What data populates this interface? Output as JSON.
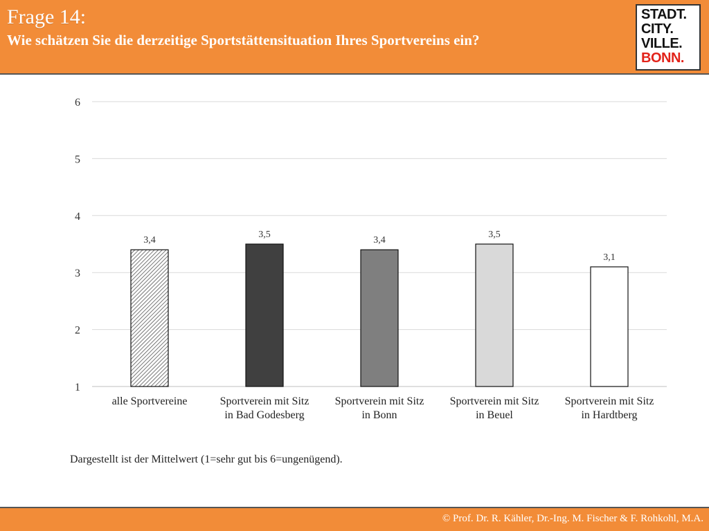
{
  "header": {
    "title": "Frage 14:",
    "subtitle": "Wie schätzen Sie die derzeitige Sportstättensituation Ihres Sportvereins ein?"
  },
  "logo": {
    "line1": "STADT.",
    "line2": "CITY.",
    "line3": "VILLE.",
    "line4": "BONN."
  },
  "colors": {
    "header_bg": "#f28c38",
    "logo_accent": "#e2231a"
  },
  "chart_data": {
    "type": "bar",
    "categories": [
      "alle Sportvereine",
      "Sportverein mit Sitz\nin Bad Godesberg",
      "Sportverein mit Sitz\nin Bonn",
      "Sportverein mit Sitz\nin Beuel",
      "Sportverein mit Sitz\nin Hardtberg"
    ],
    "values": [
      3.4,
      3.5,
      3.4,
      3.5,
      3.1
    ],
    "data_labels": [
      "3,4",
      "3,5",
      "3,4",
      "3,5",
      "3,1"
    ],
    "bar_fills": [
      "hatched",
      "#404040",
      "#7f7f7f",
      "#d9d9d9",
      "#ffffff"
    ],
    "y_ticks": [
      "1",
      "2",
      "3",
      "4",
      "5",
      "6"
    ],
    "ylim": [
      1,
      6
    ],
    "grid": true
  },
  "note": "Dargestellt ist der Mittelwert (1=sehr gut bis 6=ungenügend).",
  "footer": {
    "credit": "© Prof. Dr. R. Kähler, Dr.-Ing. M. Fischer & F. Rohkohl, M.A."
  }
}
